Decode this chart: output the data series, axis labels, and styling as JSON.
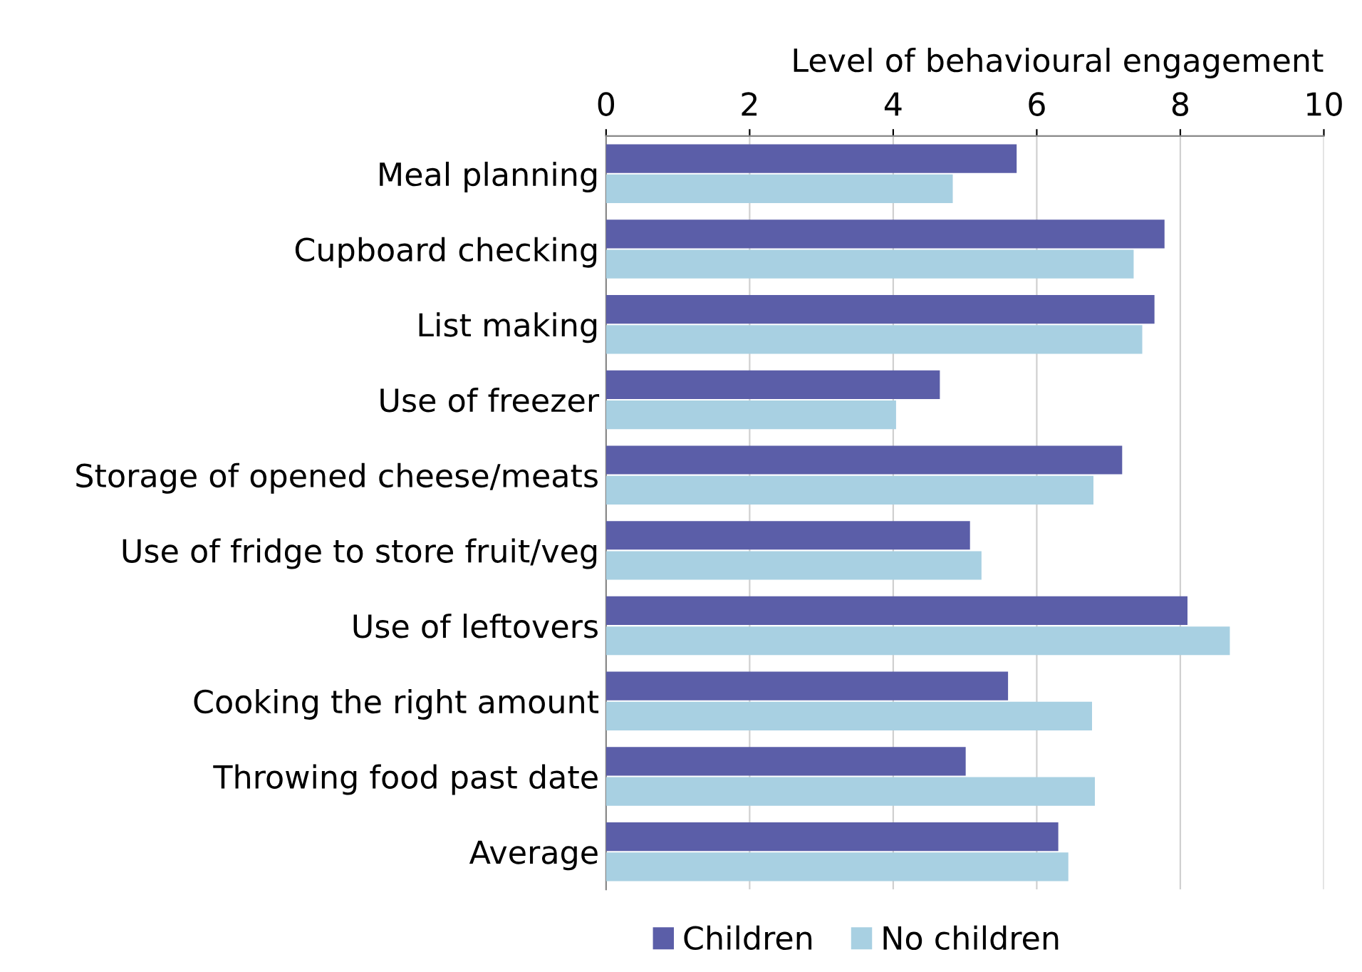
{
  "chart_data": {
    "type": "bar",
    "orientation": "horizontal",
    "xlabel": "Level of behavioural engagement",
    "categories": [
      "Meal planning",
      "Cupboard checking",
      "List making",
      "Use of freezer",
      "Storage of opened cheese/meats",
      "Use of fridge to store fruit/veg",
      "Use of leftovers",
      "Cooking the right amount",
      "Throwing food past date",
      "Average"
    ],
    "series": [
      {
        "name": "Children",
        "color": "#5b5ea8",
        "values": [
          5.72,
          7.78,
          7.64,
          4.65,
          7.19,
          5.07,
          8.1,
          5.6,
          5.01,
          6.3
        ]
      },
      {
        "name": "No children",
        "color": "#a8d0e2",
        "values": [
          4.83,
          7.35,
          7.47,
          4.04,
          6.79,
          5.23,
          8.69,
          6.77,
          6.81,
          6.44
        ]
      }
    ],
    "xlim": [
      0,
      10
    ],
    "xticks": [
      0,
      2,
      4,
      6,
      8,
      10
    ],
    "grid": "x",
    "legend": "bottom"
  }
}
